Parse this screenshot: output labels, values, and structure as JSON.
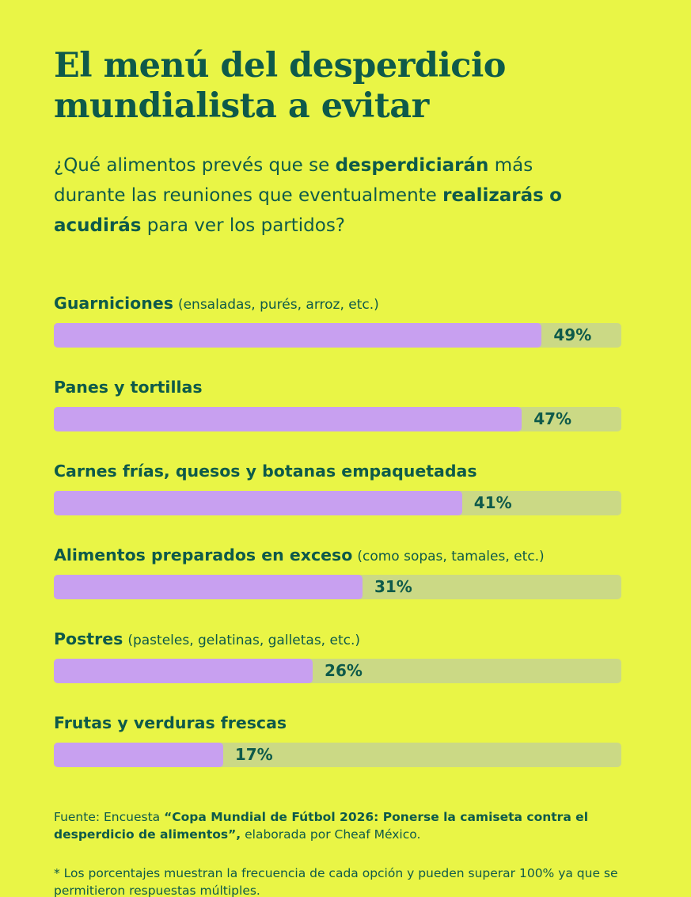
{
  "page": {
    "title": "El menú del desperdicio mundialista a evitar",
    "subtitle_segments": [
      {
        "text": "¿Qué alimentos prevés que se ",
        "bold": false
      },
      {
        "text": "desperdiciarán",
        "bold": true
      },
      {
        "text": " más durante las reuniones que eventualmente ",
        "bold": false
      },
      {
        "text": "realizarás",
        "bold": true
      },
      {
        "text": " ",
        "bold": false
      },
      {
        "text": "o acudirás",
        "bold": true
      },
      {
        "text": " para ver los partidos?",
        "bold": false
      }
    ]
  },
  "chart_data": {
    "type": "bar",
    "orientation": "horizontal",
    "title": "El menú del desperdicio mundialista a evitar",
    "categories": [
      "Guarniciones (ensaladas, purés, arroz, etc.)",
      "Panes y tortillas",
      "Carnes frías, quesos y botanas empaquetadas",
      "Alimentos preparados en exceso (como sopas, tamales, etc.)",
      "Postres (pasteles, gelatinas, galletas, etc.)",
      "Frutas y verduras frescas"
    ],
    "values": [
      49,
      47,
      41,
      31,
      26,
      17
    ],
    "unit": "%",
    "scale_max": 57,
    "grid": false,
    "legend": "none",
    "colors": {
      "background": "#e9f546",
      "bar": "#c8a0f0",
      "track": "#cbd985",
      "text": "#0e5a4a"
    },
    "items": [
      {
        "label": "Guarniciones",
        "note": "(ensaladas, purés, arroz, etc.)",
        "value": 49,
        "value_label": "49%"
      },
      {
        "label": "Panes y tortillas",
        "note": "",
        "value": 47,
        "value_label": "47%"
      },
      {
        "label": "Carnes frías, quesos y botanas empaquetadas",
        "note": "",
        "value": 41,
        "value_label": "41%"
      },
      {
        "label": "Alimentos preparados en exceso",
        "note": "(como sopas, tamales, etc.)",
        "value": 31,
        "value_label": "31%"
      },
      {
        "label": "Postres",
        "note": "(pasteles, gelatinas, galletas, etc.)",
        "value": 26,
        "value_label": "26%"
      },
      {
        "label": "Frutas y verduras frescas",
        "note": "",
        "value": 17,
        "value_label": "17%"
      }
    ]
  },
  "footer": {
    "source_segments": [
      {
        "text": "Fuente: Encuesta ",
        "bold": false
      },
      {
        "text": "“Copa Mundial de Fútbol 2026: Ponerse la camiseta contra el desperdicio de alimentos”,",
        "bold": true
      },
      {
        "text": " elaborada por Cheaf México.",
        "bold": false
      }
    ],
    "note": "* Los porcentajes muestran la frecuencia de cada opción y pueden superar 100% ya que se permitieron respuestas múltiples."
  }
}
